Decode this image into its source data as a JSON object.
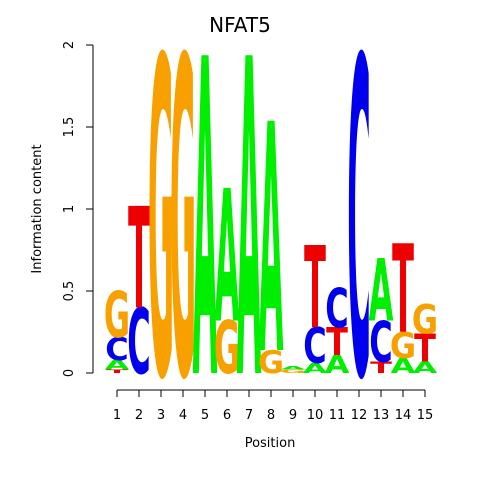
{
  "chart_data": {
    "type": "sequence-logo",
    "title": "NFAT5",
    "xlabel": "Position",
    "ylabel": "Information content",
    "ylim": [
      0,
      2
    ],
    "yticks": [
      "0",
      "0.5",
      "1",
      "1.5",
      "2"
    ],
    "positions": [
      "1",
      "2",
      "3",
      "4",
      "5",
      "6",
      "7",
      "8",
      "9",
      "10",
      "11",
      "12",
      "13",
      "14",
      "15"
    ],
    "colors": {
      "A": "#00ee00",
      "C": "#0000ee",
      "G": "#f8a000",
      "T": "#ee0000"
    },
    "stacks": [
      [
        {
          "letter": "T",
          "height": 0.02
        },
        {
          "letter": "A",
          "height": 0.06
        },
        {
          "letter": "C",
          "height": 0.14
        },
        {
          "letter": "G",
          "height": 0.28
        }
      ],
      [
        {
          "letter": "C",
          "height": 0.4
        },
        {
          "letter": "T",
          "height": 0.62
        }
      ],
      [
        {
          "letter": "G",
          "height": 1.94
        }
      ],
      [
        {
          "letter": "G",
          "height": 1.94
        }
      ],
      [
        {
          "letter": "A",
          "height": 1.94
        }
      ],
      [
        {
          "letter": "G",
          "height": 0.32
        },
        {
          "letter": "A",
          "height": 0.81
        }
      ],
      [
        {
          "letter": "A",
          "height": 1.94
        }
      ],
      [
        {
          "letter": "G",
          "height": 0.14
        },
        {
          "letter": "A",
          "height": 1.4
        }
      ],
      [
        {
          "letter": "G",
          "height": 0.02
        },
        {
          "letter": "A",
          "height": 0.02
        }
      ],
      [
        {
          "letter": "A",
          "height": 0.06
        },
        {
          "letter": "C",
          "height": 0.22
        },
        {
          "letter": "T",
          "height": 0.5
        }
      ],
      [
        {
          "letter": "A",
          "height": 0.11
        },
        {
          "letter": "T",
          "height": 0.17
        },
        {
          "letter": "C",
          "height": 0.24
        }
      ],
      [
        {
          "letter": "C",
          "height": 1.94
        }
      ],
      [
        {
          "letter": "T",
          "height": 0.07
        },
        {
          "letter": "C",
          "height": 0.25
        },
        {
          "letter": "A",
          "height": 0.38
        }
      ],
      [
        {
          "letter": "A",
          "height": 0.09
        },
        {
          "letter": "G",
          "height": 0.16
        },
        {
          "letter": "T",
          "height": 0.54
        }
      ],
      [
        {
          "letter": "A",
          "height": 0.07
        },
        {
          "letter": "T",
          "height": 0.17
        },
        {
          "letter": "G",
          "height": 0.18
        }
      ]
    ]
  }
}
